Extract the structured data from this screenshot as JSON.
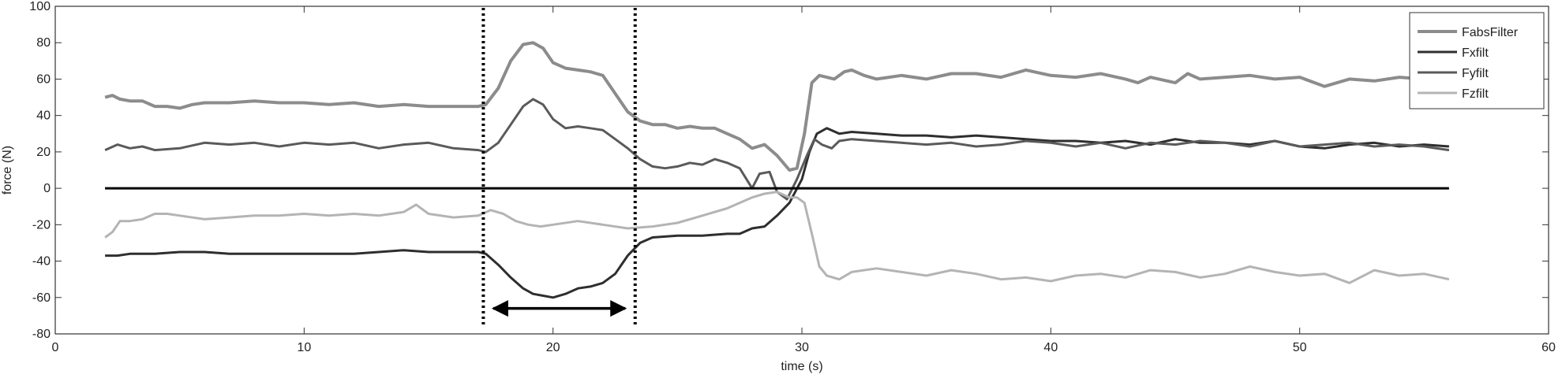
{
  "chart_data": {
    "type": "line",
    "xlabel": "time (s)",
    "ylabel": "force (N)",
    "xlim": [
      0,
      60
    ],
    "ylim": [
      -80,
      100
    ],
    "xticks": [
      0,
      10,
      20,
      30,
      40,
      50,
      60
    ],
    "yticks": [
      -80,
      -60,
      -40,
      -20,
      0,
      20,
      40,
      60,
      80,
      100
    ],
    "grid": false,
    "legend_position": "top-right",
    "series": [
      {
        "name": "FabsFilter",
        "color": "#8c8c8c",
        "x": [
          2.0,
          2.3,
          2.6,
          3.0,
          3.5,
          4.0,
          4.5,
          5.0,
          5.5,
          6.0,
          7.0,
          8.0,
          9.0,
          10.0,
          11.0,
          12.0,
          13.0,
          14.0,
          15.0,
          16.0,
          17.0,
          17.3,
          17.8,
          18.3,
          18.8,
          19.2,
          19.6,
          20.0,
          20.5,
          21.0,
          21.5,
          22.0,
          22.5,
          23.0,
          23.5,
          24.0,
          24.5,
          25.0,
          25.5,
          26.0,
          26.5,
          27.0,
          27.5,
          28.0,
          28.5,
          29.0,
          29.5,
          29.8,
          30.1,
          30.4,
          30.7,
          31.0,
          31.3,
          31.7,
          32.0,
          32.5,
          33.0,
          33.5,
          34.0,
          35.0,
          36.0,
          37.0,
          38.0,
          39.0,
          40.0,
          41.0,
          42.0,
          43.0,
          43.5,
          44.0,
          45.0,
          45.5,
          46.0,
          47.0,
          48.0,
          49.0,
          50.0,
          51.0,
          52.0,
          53.0,
          54.0,
          55.0,
          56.0
        ],
        "y": [
          50,
          51,
          49,
          48,
          48,
          45,
          45,
          44,
          46,
          47,
          47,
          48,
          47,
          47,
          46,
          47,
          45,
          46,
          45,
          45,
          45,
          46,
          55,
          70,
          79,
          80,
          77,
          69,
          66,
          65,
          64,
          62,
          52,
          42,
          37,
          35,
          35,
          33,
          34,
          33,
          33,
          30,
          27,
          22,
          24,
          18,
          10,
          11,
          30,
          58,
          62,
          61,
          60,
          64,
          65,
          62,
          60,
          61,
          62,
          60,
          63,
          63,
          61,
          65,
          62,
          61,
          63,
          60,
          58,
          61,
          58,
          63,
          60,
          61,
          62,
          60,
          61,
          56,
          60,
          59,
          61,
          60,
          59
        ]
      },
      {
        "name": "Fxfilt",
        "color": "#2e2e2e",
        "x": [
          2.0,
          2.5,
          3.0,
          4.0,
          5.0,
          6.0,
          7.0,
          8.0,
          9.0,
          10.0,
          11.0,
          12.0,
          13.0,
          14.0,
          15.0,
          16.0,
          17.0,
          17.3,
          17.8,
          18.3,
          18.8,
          19.2,
          19.6,
          20.0,
          20.5,
          21.0,
          21.5,
          22.0,
          22.5,
          23.0,
          23.5,
          24.0,
          25.0,
          26.0,
          27.0,
          27.5,
          28.0,
          28.5,
          29.0,
          29.5,
          30.0,
          30.3,
          30.6,
          31.0,
          31.5,
          32.0,
          33.0,
          34.0,
          35.0,
          36.0,
          37.0,
          38.0,
          39.0,
          40.0,
          41.0,
          42.0,
          43.0,
          44.0,
          45.0,
          46.0,
          47.0,
          48.0,
          49.0,
          50.0,
          51.0,
          52.0,
          53.0,
          54.0,
          55.0,
          56.0
        ],
        "y": [
          -37,
          -37,
          -36,
          -36,
          -35,
          -35,
          -36,
          -36,
          -36,
          -36,
          -36,
          -36,
          -35,
          -34,
          -35,
          -35,
          -35,
          -36,
          -42,
          -49,
          -55,
          -58,
          -59,
          -60,
          -58,
          -55,
          -54,
          -52,
          -47,
          -37,
          -30,
          -27,
          -26,
          -26,
          -25,
          -25,
          -22,
          -21,
          -15,
          -8,
          5,
          20,
          30,
          33,
          30,
          31,
          30,
          29,
          29,
          28,
          29,
          28,
          27,
          26,
          26,
          25,
          26,
          24,
          27,
          25,
          25,
          24,
          26,
          23,
          22,
          24,
          25,
          23,
          24,
          23
        ]
      },
      {
        "name": "Fyfilt",
        "color": "#5a5a5a",
        "x": [
          2.0,
          2.5,
          3.0,
          3.5,
          4.0,
          5.0,
          6.0,
          7.0,
          8.0,
          9.0,
          10.0,
          11.0,
          12.0,
          13.0,
          14.0,
          15.0,
          16.0,
          17.0,
          17.3,
          17.8,
          18.3,
          18.8,
          19.2,
          19.6,
          20.0,
          20.5,
          21.0,
          21.5,
          22.0,
          22.5,
          23.0,
          23.5,
          24.0,
          24.5,
          25.0,
          25.5,
          26.0,
          26.5,
          27.0,
          27.5,
          28.0,
          28.3,
          28.7,
          29.0,
          29.4,
          29.8,
          30.2,
          30.5,
          30.8,
          31.2,
          31.5,
          32.0,
          33.0,
          34.0,
          35.0,
          36.0,
          37.0,
          38.0,
          39.0,
          40.0,
          41.0,
          42.0,
          43.0,
          44.0,
          45.0,
          46.0,
          47.0,
          48.0,
          49.0,
          50.0,
          51.0,
          52.0,
          53.0,
          54.0,
          55.0,
          56.0
        ],
        "y": [
          21,
          24,
          22,
          23,
          21,
          22,
          25,
          24,
          25,
          23,
          25,
          24,
          25,
          22,
          24,
          25,
          22,
          21,
          20,
          25,
          35,
          45,
          49,
          46,
          38,
          33,
          34,
          33,
          32,
          27,
          22,
          16,
          12,
          11,
          12,
          14,
          13,
          16,
          14,
          11,
          0,
          8,
          9,
          -2,
          -6,
          5,
          18,
          27,
          24,
          22,
          26,
          27,
          26,
          25,
          24,
          25,
          23,
          24,
          26,
          25,
          23,
          25,
          22,
          25,
          24,
          26,
          25,
          23,
          26,
          23,
          24,
          25,
          23,
          24,
          23,
          21
        ]
      },
      {
        "name": "Fzfilt",
        "color": "#b4b4b4",
        "x": [
          2.0,
          2.3,
          2.6,
          3.0,
          3.5,
          4.0,
          4.5,
          5.0,
          6.0,
          7.0,
          8.0,
          9.0,
          10.0,
          11.0,
          12.0,
          13.0,
          14.0,
          14.5,
          15.0,
          16.0,
          17.0,
          17.5,
          18.0,
          18.5,
          19.0,
          19.5,
          20.0,
          21.0,
          22.0,
          23.0,
          24.0,
          25.0,
          26.0,
          27.0,
          28.0,
          28.5,
          29.0,
          29.5,
          29.8,
          30.1,
          30.4,
          30.7,
          31.0,
          31.5,
          32.0,
          33.0,
          34.0,
          35.0,
          36.0,
          37.0,
          38.0,
          39.0,
          40.0,
          41.0,
          42.0,
          43.0,
          44.0,
          45.0,
          46.0,
          47.0,
          48.0,
          49.0,
          50.0,
          51.0,
          52.0,
          53.0,
          54.0,
          55.0,
          56.0
        ],
        "y": [
          -27,
          -24,
          -18,
          -18,
          -17,
          -14,
          -14,
          -15,
          -17,
          -16,
          -15,
          -15,
          -14,
          -15,
          -14,
          -15,
          -13,
          -9,
          -14,
          -16,
          -15,
          -12,
          -14,
          -18,
          -20,
          -21,
          -20,
          -18,
          -20,
          -22,
          -21,
          -19,
          -15,
          -11,
          -5,
          -3,
          -2,
          -5,
          -5,
          -8,
          -25,
          -43,
          -48,
          -50,
          -46,
          -44,
          -46,
          -48,
          -45,
          -47,
          -50,
          -49,
          -51,
          -48,
          -47,
          -49,
          -45,
          -46,
          -49,
          -47,
          -43,
          -46,
          -48,
          -47,
          -52,
          -45,
          -48,
          -47,
          -50
        ]
      }
    ],
    "reference_lines": {
      "zero_line_y": 0,
      "vertical_markers_x": [
        17.2,
        23.3
      ],
      "arrow_x": [
        17.6,
        22.9
      ],
      "arrow_y": -66
    }
  }
}
